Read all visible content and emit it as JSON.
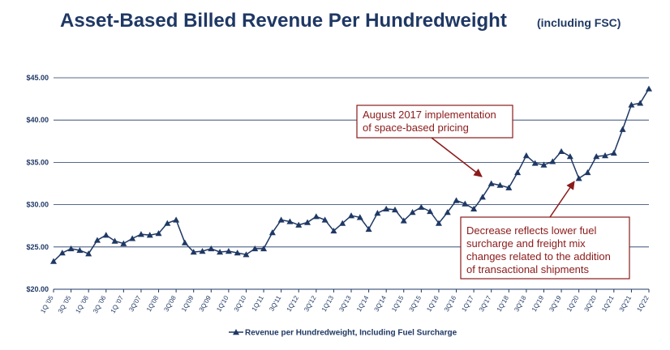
{
  "chart_data": {
    "type": "line",
    "title": "Asset-Based Billed Revenue Per Hundredweight",
    "subtitle": "(including FSC)",
    "categories": [
      "1Q '05",
      null,
      "3Q '05",
      null,
      "1Q '06",
      null,
      "3Q '06",
      null,
      "1Q '07",
      null,
      "3Q'07",
      null,
      "1Q'08",
      null,
      "3Q'08",
      null,
      "1Q'09",
      null,
      "3Q'09",
      null,
      "1Q'10",
      null,
      "3Q'10",
      null,
      "1Q'11",
      null,
      "3Q'11",
      null,
      "1Q'12",
      null,
      "3Q'12",
      null,
      "1Q'13",
      null,
      "3Q'13",
      null,
      "1Q'14",
      null,
      "3Q'14",
      null,
      "1Q'15",
      null,
      "3Q'15",
      null,
      "1Q'16",
      null,
      "3Q'16",
      null,
      "1Q'17",
      null,
      "3Q'17",
      null,
      "1Q'18",
      null,
      "3Q'18",
      null,
      "1Q'19",
      null,
      "3Q'19",
      null,
      "1Q'20",
      null,
      "3Q'20",
      null,
      "1Q'21",
      null,
      "3Q'21",
      null,
      "1Q'22"
    ],
    "series": [
      {
        "name": "Revenue per Hundredweight, Including Fuel Surcharge",
        "color": "#1f3864",
        "values": [
          23.3,
          24.3,
          24.8,
          24.6,
          24.2,
          25.8,
          26.4,
          25.7,
          25.4,
          26.0,
          26.5,
          26.4,
          26.6,
          27.8,
          28.2,
          25.5,
          24.4,
          24.5,
          24.8,
          24.4,
          24.5,
          24.3,
          24.1,
          24.8,
          24.8,
          26.7,
          28.2,
          28.0,
          27.6,
          27.9,
          28.6,
          28.2,
          26.9,
          27.8,
          28.7,
          28.5,
          27.1,
          29.0,
          29.5,
          29.4,
          28.1,
          29.1,
          29.7,
          29.2,
          27.8,
          29.1,
          30.5,
          30.1,
          29.5,
          30.9,
          32.5,
          32.3,
          32.0,
          33.8,
          35.8,
          34.9,
          34.7,
          35.1,
          36.3,
          35.7,
          33.1,
          33.8,
          35.7,
          35.8,
          36.1,
          38.9,
          41.8,
          42.0,
          43.7
        ]
      }
    ],
    "ylim": [
      20,
      45
    ],
    "yticks": [
      {
        "value": 20,
        "label": "$20.00"
      },
      {
        "value": 25,
        "label": "$25.00"
      },
      {
        "value": 30,
        "label": "$30.00"
      },
      {
        "value": 35,
        "label": "$35.00"
      },
      {
        "value": 40,
        "label": "$40.00"
      },
      {
        "value": 45,
        "label": "$45.00"
      }
    ],
    "grid": true,
    "legend": "bottom",
    "annotations": [
      {
        "lines": [
          "August 2017 implementation",
          "of space-based pricing"
        ]
      },
      {
        "lines": [
          "Decrease reflects lower fuel",
          "surcharge and freight mix",
          "changes related to the addition",
          "of transactional shipments"
        ]
      }
    ]
  }
}
